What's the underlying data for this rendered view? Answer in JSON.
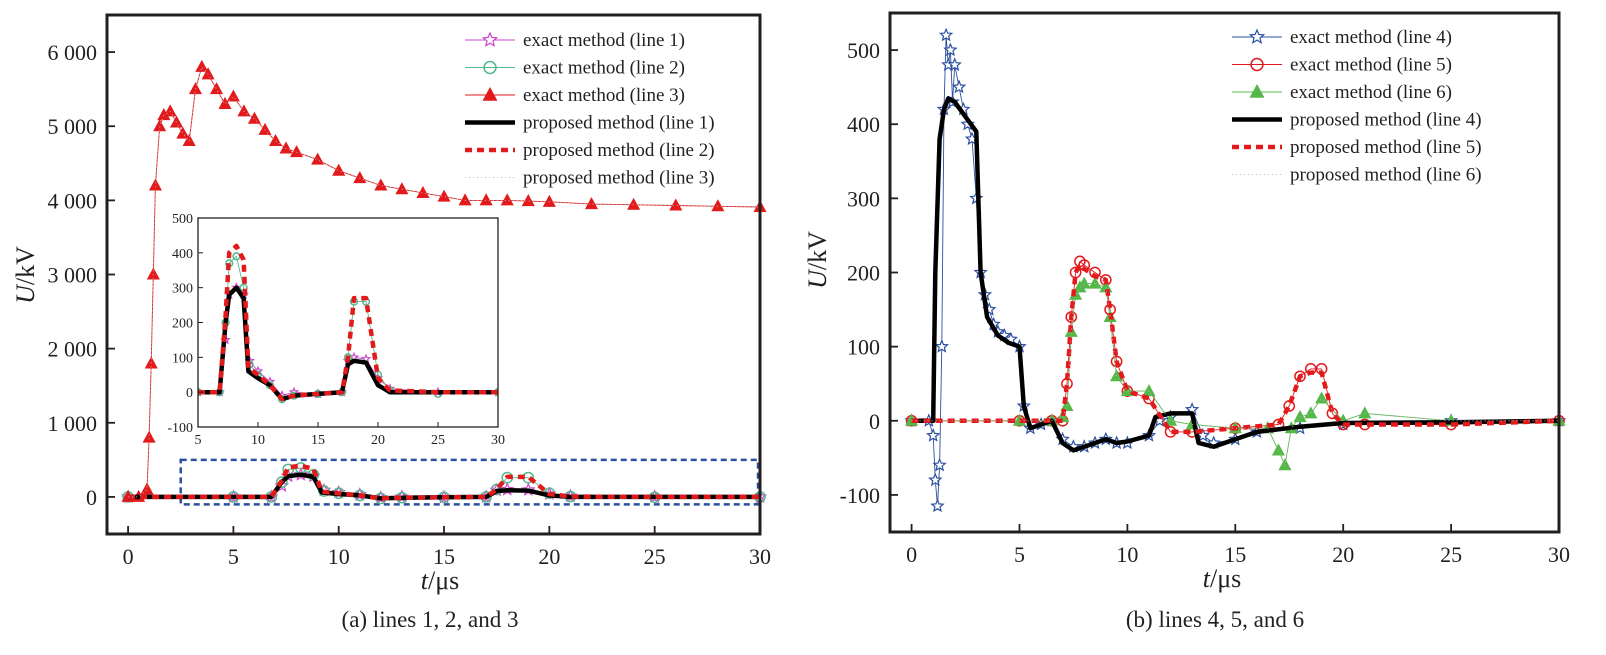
{
  "chart_data": [
    {
      "type": "line",
      "caption": "(a) lines 1, 2, and 3",
      "xlabel_var": "t",
      "xlabel_unit": "/μs",
      "ylabel_var": "U",
      "ylabel_unit": "/kV",
      "xlim": [
        -1,
        30
      ],
      "ylim": [
        -500,
        6500
      ],
      "xticks": [
        0,
        5,
        10,
        15,
        20,
        25,
        30
      ],
      "xtick_labels": [
        "0",
        "5",
        "10",
        "15",
        "20",
        "25",
        "30"
      ],
      "yticks": [
        0,
        1000,
        2000,
        3000,
        4000,
        5000,
        6000
      ],
      "ytick_labels": [
        "0",
        "1 000",
        "2 000",
        "3 000",
        "4 000",
        "5 000",
        "6 000"
      ],
      "legend_position": "top-right",
      "series": [
        {
          "name": "exact method (line 1)",
          "color": "#cc44cc",
          "marker": "star",
          "style": "thin",
          "x": [
            0,
            5,
            6.8,
            7.3,
            7.6,
            8.2,
            8.8,
            9.3,
            10,
            11,
            12,
            13,
            15,
            17,
            17.5,
            18,
            19,
            20,
            21,
            25,
            30
          ],
          "y": [
            0,
            0,
            0,
            150,
            280,
            300,
            280,
            90,
            60,
            30,
            -10,
            0,
            -5,
            0,
            90,
            100,
            95,
            40,
            10,
            0,
            0
          ]
        },
        {
          "name": "exact method (line 2)",
          "color": "#55b88a",
          "marker": "circle",
          "style": "thin",
          "x": [
            0,
            5,
            6.8,
            7.3,
            7.6,
            8.2,
            8.8,
            9.3,
            10,
            11,
            12,
            13,
            15,
            17,
            17.5,
            18,
            19,
            20,
            21,
            25,
            30
          ],
          "y": [
            0,
            0,
            0,
            200,
            370,
            390,
            300,
            80,
            50,
            20,
            -20,
            -10,
            -5,
            0,
            100,
            260,
            260,
            50,
            5,
            -5,
            0
          ]
        },
        {
          "name": "exact method (line 3)",
          "color": "#e31a1c",
          "marker": "triangle",
          "style": "thin",
          "x": [
            0,
            0.5,
            0.9,
            1.0,
            1.1,
            1.2,
            1.3,
            1.5,
            1.7,
            2.0,
            2.3,
            2.6,
            2.9,
            3.2,
            3.5,
            3.8,
            4.2,
            4.6,
            5.0,
            5.5,
            6.0,
            6.5,
            7.0,
            7.5,
            8.0,
            9.0,
            10.0,
            11.0,
            12.0,
            13.0,
            14.0,
            15.0,
            16.0,
            17.0,
            18.0,
            19.0,
            20.0,
            22.0,
            24.0,
            26.0,
            28.0,
            30.0
          ],
          "y": [
            0,
            0,
            100,
            800,
            1800,
            3000,
            4200,
            5000,
            5150,
            5200,
            5050,
            4900,
            4800,
            5500,
            5800,
            5700,
            5500,
            5300,
            5400,
            5200,
            5100,
            4950,
            4800,
            4700,
            4650,
            4550,
            4400,
            4300,
            4200,
            4150,
            4100,
            4050,
            4000,
            4000,
            4000,
            3990,
            3980,
            3950,
            3940,
            3930,
            3920,
            3910
          ]
        },
        {
          "name": "proposed method (line 1)",
          "color": "#000000",
          "marker": "none",
          "style": "thick",
          "x": [
            0,
            5,
            6.8,
            7.3,
            7.6,
            8.2,
            8.8,
            9.2,
            10,
            11,
            12,
            13,
            15,
            17,
            17.5,
            18,
            19,
            20,
            21,
            25,
            30
          ],
          "y": [
            0,
            0,
            0,
            200,
            280,
            300,
            270,
            60,
            40,
            20,
            -20,
            -10,
            -5,
            0,
            80,
            90,
            85,
            20,
            0,
            0,
            0
          ]
        },
        {
          "name": "proposed method (line 2)",
          "color": "#e31a1c",
          "marker": "none",
          "style": "dashed",
          "x": [
            0,
            5,
            6.8,
            7.3,
            7.6,
            8.2,
            8.8,
            9.2,
            10,
            11,
            12,
            13,
            15,
            17,
            17.5,
            18,
            19,
            20,
            21,
            25,
            30
          ],
          "y": [
            0,
            0,
            0,
            220,
            400,
            420,
            380,
            70,
            50,
            20,
            -20,
            -10,
            -5,
            0,
            100,
            270,
            270,
            40,
            5,
            0,
            0
          ]
        },
        {
          "name": "proposed method (line 3)",
          "color": "#b8b8b8",
          "marker": "none",
          "style": "dotted",
          "x": [
            0,
            0.5,
            0.9,
            1.0,
            1.1,
            1.2,
            1.3,
            1.5,
            1.7,
            2.0,
            2.3,
            2.6,
            2.9,
            3.2,
            3.5,
            3.8,
            4.2,
            4.6,
            5.0,
            5.5,
            6.0,
            6.5,
            7.0,
            7.5,
            8.0,
            9.0,
            10.0,
            11.0,
            12.0,
            13.0,
            14.0,
            15.0,
            16.0,
            17.0,
            18.0,
            19.0,
            20.0,
            22.0,
            24.0,
            26.0,
            28.0,
            30.0
          ],
          "y": [
            0,
            0,
            100,
            800,
            1800,
            3000,
            4200,
            5000,
            5150,
            5200,
            5050,
            4900,
            4800,
            5500,
            5800,
            5700,
            5500,
            5300,
            5400,
            5200,
            5100,
            4950,
            4800,
            4700,
            4650,
            4550,
            4400,
            4300,
            4200,
            4150,
            4100,
            4050,
            4000,
            4000,
            4000,
            3990,
            3980,
            3950,
            3940,
            3930,
            3920,
            3910
          ]
        }
      ],
      "inset": {
        "xlim": [
          5,
          30
        ],
        "ylim": [
          -100,
          500
        ],
        "xticks": [
          5,
          10,
          15,
          20,
          25,
          30
        ],
        "xtick_labels": [
          "5",
          "10",
          "15",
          "20",
          "25",
          "30"
        ],
        "yticks": [
          -100,
          0,
          100,
          200,
          300,
          400,
          500
        ],
        "ytick_labels": [
          "-100",
          "0",
          "100",
          "200",
          "300",
          "400",
          "500"
        ],
        "highlight_region": {
          "x": [
            2.5,
            30
          ],
          "y": [
            -100,
            500
          ]
        }
      }
    },
    {
      "type": "line",
      "caption": "(b) lines 4, 5, and 6",
      "xlabel_var": "t",
      "xlabel_unit": "/μs",
      "ylabel_var": "U",
      "ylabel_unit": "/kV",
      "xlim": [
        -1,
        30
      ],
      "ylim": [
        -150,
        550
      ],
      "xticks": [
        0,
        5,
        10,
        15,
        20,
        25,
        30
      ],
      "xtick_labels": [
        "0",
        "5",
        "10",
        "15",
        "20",
        "25",
        "30"
      ],
      "yticks": [
        -100,
        0,
        100,
        200,
        300,
        400,
        500
      ],
      "ytick_labels": [
        "-100",
        "0",
        "100",
        "200",
        "300",
        "400",
        "500"
      ],
      "legend_position": "top-right",
      "series": [
        {
          "name": "exact method (line 4)",
          "color": "#2b4fa0",
          "marker": "star",
          "style": "thin",
          "x": [
            0,
            0.8,
            1.0,
            1.1,
            1.2,
            1.3,
            1.4,
            1.5,
            1.6,
            1.7,
            1.8,
            1.9,
            2.0,
            2.2,
            2.4,
            2.6,
            2.8,
            3.0,
            3.2,
            3.4,
            3.6,
            3.8,
            4.0,
            4.3,
            4.6,
            5.0,
            5.2,
            5.5,
            6.0,
            6.5,
            7.0,
            7.5,
            8.0,
            8.5,
            9.0,
            9.5,
            10.0,
            11.0,
            11.5,
            12.0,
            13.0,
            13.5,
            14.0,
            15.0,
            16.0,
            18.0,
            20.0,
            25.0,
            30.0
          ],
          "y": [
            0,
            0,
            -20,
            -80,
            -115,
            -60,
            100,
            420,
            520,
            480,
            500,
            430,
            480,
            450,
            420,
            400,
            380,
            300,
            200,
            170,
            150,
            130,
            120,
            115,
            110,
            100,
            20,
            -10,
            -5,
            0,
            -25,
            -35,
            -35,
            -30,
            -25,
            -30,
            -30,
            -20,
            0,
            5,
            15,
            -20,
            -30,
            -25,
            -15,
            -10,
            -5,
            0,
            0
          ]
        },
        {
          "name": "exact method (line 5)",
          "color": "#e31a1c",
          "marker": "circle",
          "style": "thin",
          "x": [
            0,
            5,
            6.5,
            7.0,
            7.2,
            7.4,
            7.6,
            7.8,
            8.0,
            8.5,
            9.0,
            9.2,
            9.5,
            10.0,
            11.0,
            12.0,
            13.0,
            15.0,
            17.0,
            17.5,
            18.0,
            18.5,
            19.0,
            19.5,
            20.0,
            21.0,
            25.0,
            30.0
          ],
          "y": [
            0,
            0,
            0,
            0,
            50,
            140,
            200,
            215,
            210,
            200,
            190,
            150,
            80,
            40,
            30,
            -15,
            -15,
            -10,
            -5,
            20,
            60,
            70,
            70,
            10,
            -5,
            -5,
            -5,
            0
          ]
        },
        {
          "name": "exact method (line 6)",
          "color": "#54b848",
          "marker": "triangle",
          "style": "thin",
          "x": [
            0,
            5,
            6.5,
            7.0,
            7.2,
            7.4,
            7.6,
            7.8,
            8.0,
            8.5,
            9.0,
            9.2,
            9.5,
            10.0,
            11.0,
            12.0,
            13.0,
            15.0,
            16.5,
            17.0,
            17.3,
            17.6,
            18.0,
            18.5,
            19.0,
            20.0,
            21.0,
            25.0,
            30.0
          ],
          "y": [
            0,
            0,
            0,
            5,
            20,
            120,
            170,
            180,
            185,
            185,
            180,
            140,
            60,
            40,
            40,
            0,
            -5,
            -10,
            -10,
            -40,
            -60,
            -10,
            5,
            10,
            30,
            0,
            10,
            0,
            0
          ]
        },
        {
          "name": "proposed method (line 4)",
          "color": "#000000",
          "marker": "none",
          "style": "thick",
          "x": [
            0,
            1.0,
            1.1,
            1.3,
            1.5,
            1.7,
            2.0,
            2.5,
            3.0,
            3.2,
            3.5,
            4.0,
            4.5,
            5.0,
            5.2,
            5.5,
            6.0,
            6.5,
            7.0,
            7.5,
            8.0,
            8.5,
            9.0,
            9.5,
            10.0,
            11.0,
            11.3,
            12.0,
            13.0,
            13.3,
            14.0,
            15.0,
            16.0,
            18.0,
            20.0,
            25.0,
            30.0
          ],
          "y": [
            0,
            0,
            200,
            380,
            420,
            435,
            430,
            410,
            390,
            200,
            140,
            115,
            105,
            100,
            20,
            -10,
            -5,
            0,
            -30,
            -40,
            -35,
            -30,
            -25,
            -30,
            -28,
            -20,
            5,
            10,
            10,
            -30,
            -35,
            -25,
            -15,
            -8,
            -3,
            -2,
            0
          ]
        },
        {
          "name": "proposed method (line 5)",
          "color": "#e31a1c",
          "marker": "none",
          "style": "dashed",
          "x": [
            0,
            5,
            6.5,
            7.0,
            7.2,
            7.4,
            7.6,
            7.8,
            8.0,
            8.5,
            9.0,
            9.2,
            9.5,
            10.0,
            11.0,
            12.0,
            13.0,
            15.0,
            17.0,
            17.5,
            18.0,
            18.5,
            19.0,
            19.5,
            20.0,
            21.0,
            25.0,
            30.0
          ],
          "y": [
            0,
            0,
            0,
            0,
            50,
            140,
            200,
            210,
            205,
            195,
            190,
            150,
            80,
            40,
            30,
            -15,
            -15,
            -10,
            -5,
            20,
            60,
            65,
            65,
            10,
            -5,
            -5,
            -5,
            0
          ]
        },
        {
          "name": "proposed method (line 6)",
          "color": "#b8b8b8",
          "marker": "none",
          "style": "dotted",
          "x": [
            0,
            5,
            6.5,
            7.0,
            7.2,
            7.4,
            7.6,
            7.8,
            8.0,
            8.5,
            9.0,
            9.2,
            9.5,
            10.0,
            11.0,
            12.0,
            13.0,
            15.0,
            16.5,
            17.0,
            17.3,
            17.6,
            18.0,
            18.5,
            19.0,
            20.0,
            21.0,
            25.0,
            30.0
          ],
          "y": [
            0,
            0,
            0,
            5,
            20,
            120,
            170,
            180,
            185,
            185,
            180,
            140,
            60,
            40,
            40,
            0,
            -5,
            -10,
            -10,
            -40,
            -60,
            -10,
            5,
            10,
            30,
            0,
            10,
            0,
            0
          ]
        }
      ]
    }
  ]
}
